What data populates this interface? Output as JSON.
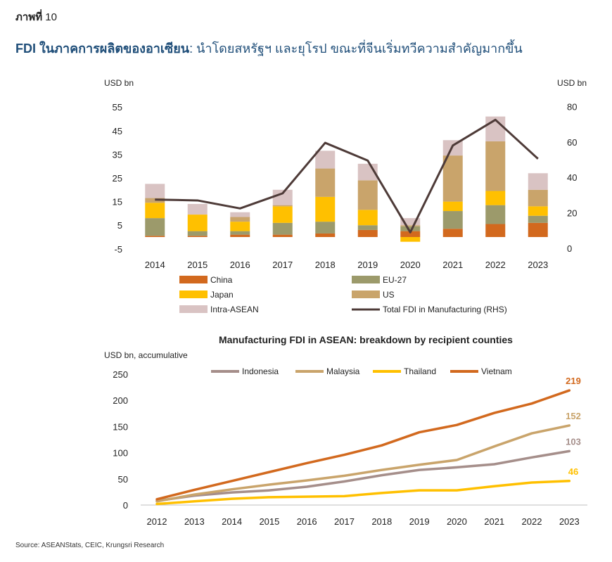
{
  "figure_label": {
    "prefix": "ภาพที่",
    "number": "10"
  },
  "headline": {
    "bold": "FDI ในภาคการผลิตของอาเซียน",
    "rest": ": นำโดยสหรัฐฯ และยุโรป ขณะที่จีนเริ่มทวีความสำคัญมากขึ้น"
  },
  "colors": {
    "China": "#d2691e",
    "EU-27": "#9c9a6b",
    "Japan": "#ffc000",
    "US": "#c9a46b",
    "Intra-ASEAN": "#d9c3c3",
    "Total": "#4e3b38",
    "Indonesia": "#a58e8a",
    "Malaysia": "#c9a46b",
    "Thailand": "#ffc000",
    "Vietnam": "#d2691e"
  },
  "chart_data": [
    {
      "type": "bar",
      "stacked": true,
      "title": "",
      "ylabel_left": "USD bn",
      "ylabel_right": "USD bn",
      "ylim": [
        -5,
        55
      ],
      "y_ticks": [
        "55",
        "45",
        "35",
        "25",
        "15",
        "5",
        "-5"
      ],
      "y_ticks_right": [
        "80",
        "60",
        "40",
        "20",
        "0"
      ],
      "ylim_right": [
        0,
        80
      ],
      "categories": [
        "2014",
        "2015",
        "2016",
        "2017",
        "2018",
        "2019",
        "2020",
        "2021",
        "2022",
        "2023"
      ],
      "series": [
        {
          "name": "China",
          "values": [
            0.5,
            0.5,
            1,
            1,
            1.5,
            3,
            2.5,
            3.5,
            5.5,
            6
          ]
        },
        {
          "name": "EU-27",
          "values": [
            7.5,
            2,
            1.5,
            5,
            5,
            2,
            2,
            7.5,
            8,
            3
          ]
        },
        {
          "name": "Japan",
          "values": [
            6.5,
            7,
            4,
            7,
            10.5,
            6.5,
            -2,
            4,
            6,
            4
          ]
        },
        {
          "name": "US",
          "values": [
            2,
            0,
            2,
            0.5,
            12,
            12.5,
            0.5,
            19.5,
            21,
            7
          ]
        },
        {
          "name": "Intra-ASEAN",
          "values": [
            6,
            4.5,
            2,
            6.5,
            7.5,
            7,
            3,
            6.5,
            10.5,
            7
          ]
        }
      ],
      "line": {
        "name": "Total FDI in Manufacturing (RHS)",
        "axis": "right",
        "values": [
          27.5,
          27,
          22.5,
          31,
          59.5,
          49.5,
          9,
          58,
          72.5,
          50.5
        ]
      },
      "legend": [
        "China",
        "EU-27",
        "Japan",
        "US",
        "Intra-ASEAN",
        "Total FDI in Manufacturing (RHS)"
      ],
      "legend_position": "bottom"
    },
    {
      "type": "line",
      "title": "Manufacturing FDI in ASEAN: breakdown by recipient counties",
      "ylabel": "USD bn, accumulative",
      "ylim": [
        0,
        250
      ],
      "y_ticks": [
        "250",
        "200",
        "150",
        "100",
        "50",
        "0"
      ],
      "x": [
        "2012",
        "2013",
        "2014",
        "2015",
        "2016",
        "2017",
        "2018",
        "2019",
        "2020",
        "2021",
        "2022",
        "2023"
      ],
      "series": [
        {
          "name": "Indonesia",
          "values": [
            8,
            18,
            24,
            28,
            35,
            45,
            57,
            67,
            72,
            78,
            91,
            103
          ],
          "end_label": "103"
        },
        {
          "name": "Malaysia",
          "values": [
            7,
            20,
            30,
            39,
            47,
            56,
            67,
            77,
            86,
            112,
            137,
            152
          ],
          "end_label": "152"
        },
        {
          "name": "Thailand",
          "values": [
            2,
            7,
            12,
            15,
            16,
            17,
            23,
            28,
            28,
            36,
            43,
            46
          ],
          "end_label": "46"
        },
        {
          "name": "Vietnam",
          "values": [
            11,
            29,
            46,
            63,
            80,
            96,
            114,
            139,
            153,
            176,
            194,
            219
          ],
          "end_label": "219"
        }
      ],
      "legend_position": "top"
    }
  ],
  "source": "Source:  ASEANStats, CEIC, Krungsri Research"
}
